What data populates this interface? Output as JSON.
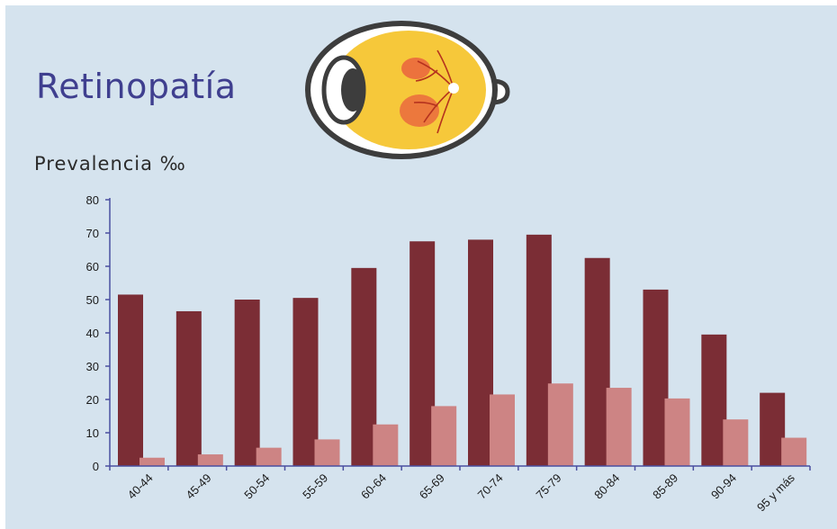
{
  "title": "Retinopatía",
  "chart_data": {
    "type": "bar",
    "ylabel": "Prevalencia ‰",
    "ylim": [
      0,
      80
    ],
    "yticks": [
      0,
      10,
      20,
      30,
      40,
      50,
      60,
      70,
      80
    ],
    "categories": [
      "40-44",
      "45-49",
      "50-54",
      "55-59",
      "60-64",
      "65-69",
      "70-74",
      "75-79",
      "80-84",
      "85-89",
      "90-94",
      "95 y más"
    ],
    "series": [
      {
        "values": [
          51.5,
          46.5,
          50,
          50.5,
          59.5,
          67.5,
          68,
          69.5,
          62.5,
          53,
          39.5,
          22
        ],
        "color": "#7b2d35"
      },
      {
        "values": [
          2.5,
          3.5,
          5.5,
          8,
          12.5,
          18,
          21.5,
          24.8,
          23.5,
          20.3,
          14,
          8.5
        ],
        "color": "#cd8484"
      }
    ],
    "grid": false,
    "legend": "none"
  }
}
